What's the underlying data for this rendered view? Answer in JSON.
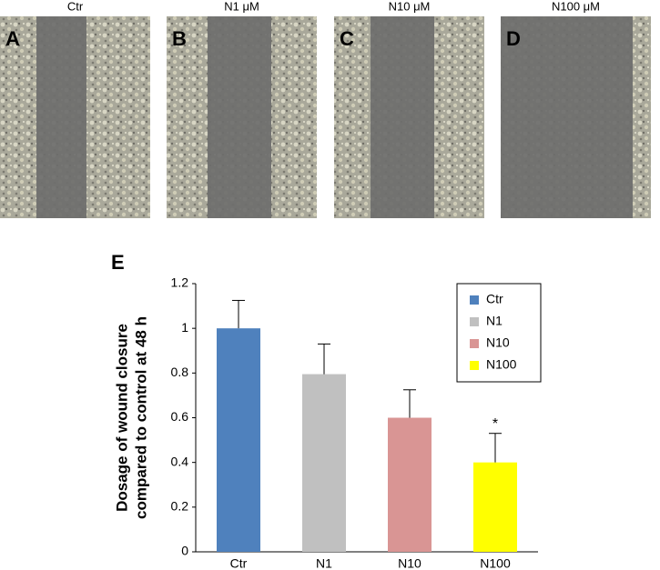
{
  "panels": [
    {
      "letter": "A",
      "title": "Ctr"
    },
    {
      "letter": "B",
      "title": "N1 μM"
    },
    {
      "letter": "C",
      "title": "N10 μM"
    },
    {
      "letter": "D",
      "title": "N100 μM"
    }
  ],
  "chart_data": {
    "type": "bar",
    "panel_letter": "E",
    "ylabel": [
      "Dosage of wound closure",
      "compared to control at 48 h"
    ],
    "categories": [
      "Ctr",
      "N1",
      "N10",
      "N100"
    ],
    "values": [
      1,
      0.795,
      0.6,
      0.4
    ],
    "errors": [
      0.125,
      0.135,
      0.125,
      0.13
    ],
    "colors": [
      "#4f81bd",
      "#c0c0c0",
      "#d99594",
      "#ffff00"
    ],
    "ylim": [
      0,
      1.2
    ],
    "yticks": [
      0,
      0.2,
      0.4,
      0.6,
      0.8,
      1,
      1.2
    ],
    "legend": "upper right",
    "annotations": [
      {
        "text": "*",
        "category": "N100"
      }
    ]
  }
}
